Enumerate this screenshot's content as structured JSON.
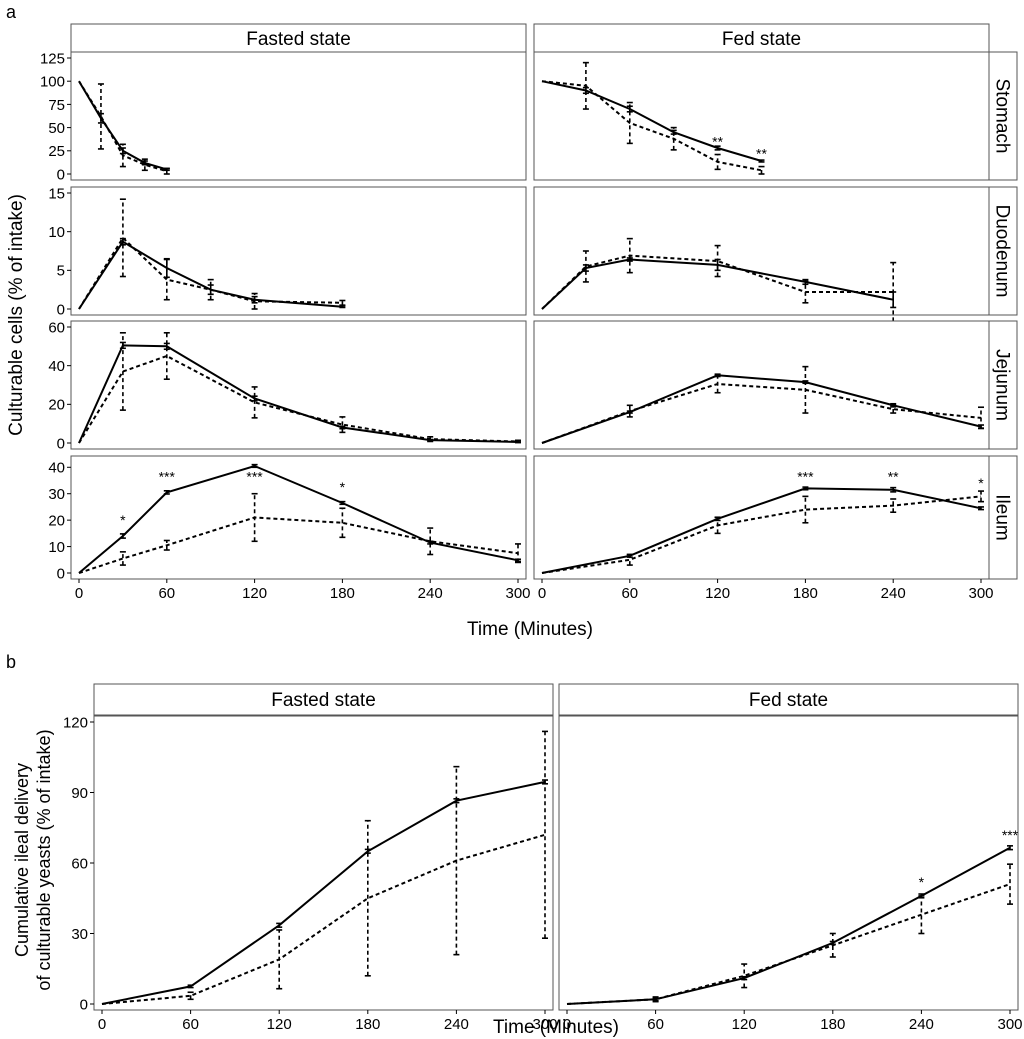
{
  "figure": {
    "panel_a_label": "a",
    "panel_b_label": "b"
  },
  "chart_data": [
    {
      "type": "line",
      "id": "a",
      "facet_columns": [
        "Fasted state",
        "Fed state"
      ],
      "facet_rows": [
        "Stomach",
        "Duodenum",
        "Jejunum",
        "Ileum"
      ],
      "xlabel": "Time (Minutes)",
      "ylabel": "Culturable cells (% of intake)",
      "x_ticks": [
        0,
        60,
        120,
        180,
        240,
        300
      ],
      "xlim": [
        0,
        300
      ],
      "rows": [
        {
          "name": "Stomach",
          "ylim": [
            0,
            125
          ],
          "y_ticks": [
            0,
            25,
            50,
            75,
            100,
            125
          ],
          "panels": [
            {
              "column": "Fasted state",
              "series": [
                {
                  "name": "solid",
                  "x": [
                    0,
                    15,
                    30,
                    45,
                    60
                  ],
                  "y": [
                    100,
                    60,
                    25,
                    12,
                    5
                  ],
                  "err": [
                    0,
                    5,
                    3,
                    2,
                    1
                  ]
                },
                {
                  "name": "dashed",
                  "x": [
                    0,
                    15,
                    30,
                    45,
                    60
                  ],
                  "y": [
                    100,
                    62,
                    20,
                    10,
                    3
                  ],
                  "err": [
                    0,
                    35,
                    12,
                    6,
                    3
                  ]
                }
              ],
              "annotations": []
            },
            {
              "column": "Fed state",
              "series": [
                {
                  "name": "solid",
                  "x": [
                    0,
                    30,
                    60,
                    90,
                    120,
                    150
                  ],
                  "y": [
                    100,
                    90,
                    70,
                    45,
                    28,
                    14
                  ],
                  "err": [
                    0,
                    3,
                    3,
                    2,
                    2,
                    1
                  ]
                },
                {
                  "name": "dashed",
                  "x": [
                    0,
                    30,
                    60,
                    90,
                    120,
                    150
                  ],
                  "y": [
                    100,
                    95,
                    55,
                    38,
                    13,
                    4
                  ],
                  "err": [
                    0,
                    25,
                    22,
                    12,
                    8,
                    4
                  ]
                }
              ],
              "annotations": [
                {
                  "x": 120,
                  "y": 35,
                  "text": "**"
                },
                {
                  "x": 150,
                  "y": 22,
                  "text": "**"
                }
              ]
            }
          ]
        },
        {
          "name": "Duodenum",
          "ylim": [
            0,
            15
          ],
          "y_ticks": [
            0,
            5,
            10,
            15
          ],
          "panels": [
            {
              "column": "Fasted state",
              "series": [
                {
                  "name": "solid",
                  "x": [
                    0,
                    30,
                    60,
                    90,
                    120,
                    180
                  ],
                  "y": [
                    0,
                    8.7,
                    5.3,
                    2.5,
                    1.2,
                    0.3
                  ],
                  "err": [
                    0,
                    0.4,
                    1.2,
                    0.6,
                    0.4,
                    0.1
                  ]
                },
                {
                  "name": "dashed",
                  "x": [
                    0,
                    30,
                    60,
                    90,
                    120,
                    180
                  ],
                  "y": [
                    0,
                    9.2,
                    3.8,
                    2.5,
                    1.0,
                    0.8
                  ],
                  "err": [
                    0,
                    5,
                    2.6,
                    1.3,
                    1.0,
                    0.3
                  ]
                }
              ],
              "annotations": []
            },
            {
              "column": "Fed state",
              "series": [
                {
                  "name": "solid",
                  "x": [
                    0,
                    30,
                    60,
                    120,
                    180,
                    240
                  ],
                  "y": [
                    0,
                    5.3,
                    6.4,
                    5.7,
                    3.5,
                    1.2
                  ],
                  "err": [
                    0,
                    0.4,
                    0.2,
                    0.7,
                    0.3,
                    1.0
                  ]
                },
                {
                  "name": "dashed",
                  "x": [
                    0,
                    30,
                    60,
                    120,
                    180,
                    240
                  ],
                  "y": [
                    0,
                    5.5,
                    6.9,
                    6.2,
                    2.2,
                    2.2
                  ],
                  "err": [
                    0,
                    2.0,
                    2.2,
                    2.0,
                    1.4,
                    3.8
                  ]
                }
              ],
              "annotations": []
            }
          ]
        },
        {
          "name": "Jejunum",
          "ylim": [
            0,
            60
          ],
          "y_ticks": [
            0,
            20,
            40,
            60
          ],
          "panels": [
            {
              "column": "Fasted state",
              "series": [
                {
                  "name": "solid",
                  "x": [
                    0,
                    30,
                    60,
                    120,
                    180,
                    240,
                    300
                  ],
                  "y": [
                    0,
                    50.5,
                    50,
                    23,
                    8,
                    1.5,
                    0.5
                  ],
                  "err": [
                    0,
                    1.5,
                    1.5,
                    1.2,
                    0.6,
                    0.3,
                    0.1
                  ]
                },
                {
                  "name": "dashed",
                  "x": [
                    0,
                    30,
                    60,
                    120,
                    180,
                    240,
                    300
                  ],
                  "y": [
                    0,
                    37,
                    45,
                    21,
                    9.5,
                    2,
                    0.8
                  ],
                  "err": [
                    0,
                    20,
                    12,
                    8,
                    4,
                    1.2,
                    0.6
                  ]
                }
              ],
              "annotations": []
            },
            {
              "column": "Fed state",
              "series": [
                {
                  "name": "solid",
                  "x": [
                    0,
                    60,
                    120,
                    180,
                    240,
                    300
                  ],
                  "y": [
                    0,
                    16,
                    35,
                    31.5,
                    19.5,
                    8.5
                  ],
                  "err": [
                    0,
                    0.5,
                    0.6,
                    0.6,
                    0.8,
                    0.8
                  ]
                },
                {
                  "name": "dashed",
                  "x": [
                    0,
                    60,
                    120,
                    180,
                    240,
                    300
                  ],
                  "y": [
                    0,
                    16.5,
                    30.5,
                    27.5,
                    17.5,
                    13
                  ],
                  "err": [
                    0,
                    3,
                    4.5,
                    12,
                    2,
                    5.5
                  ]
                }
              ],
              "annotations": []
            }
          ]
        },
        {
          "name": "Ileum",
          "ylim": [
            0,
            42
          ],
          "y_ticks": [
            0,
            10,
            20,
            30,
            40
          ],
          "panels": [
            {
              "column": "Fasted state",
              "series": [
                {
                  "name": "solid",
                  "x": [
                    0,
                    30,
                    60,
                    120,
                    180,
                    240,
                    300
                  ],
                  "y": [
                    0,
                    14,
                    30.5,
                    40.5,
                    26.5,
                    11.5,
                    4.8
                  ],
                  "err": [
                    0,
                    0.8,
                    0.6,
                    0.5,
                    0.5,
                    0.5,
                    0.4
                  ]
                },
                {
                  "name": "dashed",
                  "x": [
                    0,
                    30,
                    60,
                    120,
                    180,
                    240,
                    300
                  ],
                  "y": [
                    0,
                    5.5,
                    10.5,
                    21,
                    19,
                    12,
                    7.5
                  ],
                  "err": [
                    0,
                    2.5,
                    1.8,
                    9,
                    5.5,
                    5,
                    3.5
                  ]
                }
              ],
              "annotations": [
                {
                  "x": 30,
                  "y": 20,
                  "text": "*"
                },
                {
                  "x": 60,
                  "y": 36.5,
                  "text": "***"
                },
                {
                  "x": 120,
                  "y": 36.5,
                  "text": "***"
                },
                {
                  "x": 180,
                  "y": 32.5,
                  "text": "*"
                }
              ]
            },
            {
              "column": "Fed state",
              "series": [
                {
                  "name": "solid",
                  "x": [
                    0,
                    60,
                    120,
                    180,
                    240,
                    300
                  ],
                  "y": [
                    0,
                    6.5,
                    20.5,
                    32,
                    31.5,
                    24.5
                  ],
                  "err": [
                    0,
                    0.5,
                    0.6,
                    0.5,
                    0.8,
                    0.5
                  ]
                },
                {
                  "name": "dashed",
                  "x": [
                    0,
                    60,
                    120,
                    180,
                    240,
                    300
                  ],
                  "y": [
                    0,
                    5,
                    18,
                    24,
                    25.5,
                    29
                  ],
                  "err": [
                    0,
                    2,
                    3,
                    5,
                    2.5,
                    2
                  ]
                }
              ],
              "annotations": [
                {
                  "x": 180,
                  "y": 36.5,
                  "text": "***"
                },
                {
                  "x": 240,
                  "y": 36.5,
                  "text": "**"
                },
                {
                  "x": 300,
                  "y": 34,
                  "text": "*"
                }
              ]
            }
          ]
        }
      ]
    },
    {
      "type": "line",
      "id": "b",
      "facet_columns": [
        "Fasted state",
        "Fed state"
      ],
      "xlabel": "Time (Minutes)",
      "ylabel_lines": [
        "Cumulative ileal delivery",
        "of culturable yeasts (% of intake)"
      ],
      "x_ticks": [
        0,
        60,
        120,
        180,
        240,
        300
      ],
      "y_ticks": [
        0,
        30,
        60,
        90,
        120
      ],
      "xlim": [
        0,
        300
      ],
      "ylim": [
        0,
        120
      ],
      "panels": [
        {
          "column": "Fasted state",
          "series": [
            {
              "name": "solid",
              "x": [
                0,
                60,
                120,
                180,
                240,
                300
              ],
              "y": [
                0,
                7.5,
                33.5,
                65,
                86.5,
                94.5
              ],
              "err": [
                0,
                0.5,
                0.8,
                0.8,
                0.8,
                0.8
              ]
            },
            {
              "name": "dashed",
              "x": [
                0,
                60,
                120,
                180,
                240,
                300
              ],
              "y": [
                0,
                3.5,
                19,
                45,
                61,
                72
              ],
              "err": [
                0,
                1.5,
                12.5,
                33,
                40,
                44
              ]
            }
          ],
          "annotations": []
        },
        {
          "column": "Fed state",
          "series": [
            {
              "name": "solid",
              "x": [
                0,
                60,
                120,
                180,
                240,
                300
              ],
              "y": [
                0,
                2,
                11,
                26,
                46,
                66.5
              ],
              "err": [
                0,
                0.6,
                0.6,
                0.6,
                0.8,
                0.8
              ]
            },
            {
              "name": "dashed",
              "x": [
                0,
                60,
                120,
                180,
                240,
                300
              ],
              "y": [
                0,
                2,
                12,
                25,
                38,
                51
              ],
              "err": [
                0,
                1,
                5,
                5,
                8,
                8.5
              ]
            }
          ],
          "annotations": [
            {
              "x": 240,
              "y": 52,
              "text": "*"
            },
            {
              "x": 300,
              "y": 72,
              "text": "***"
            }
          ]
        }
      ]
    }
  ]
}
